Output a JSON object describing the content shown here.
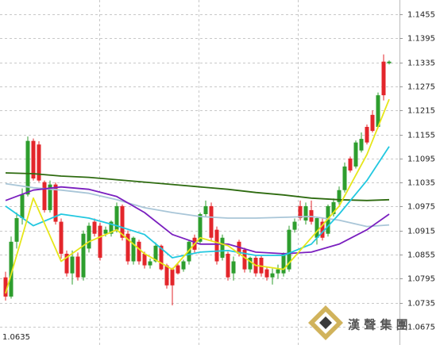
{
  "chart_data": {
    "type": "candlestick",
    "categories": [
      null,
      null,
      null,
      null,
      null,
      null,
      null,
      null,
      null,
      null,
      null,
      null,
      null,
      null,
      null,
      null,
      null,
      null,
      null,
      null,
      null,
      null,
      null,
      null,
      null,
      null,
      null,
      null,
      null,
      null,
      null,
      null,
      null,
      null,
      null,
      null,
      null,
      null,
      null,
      null,
      null,
      null,
      null,
      null,
      null,
      null,
      null,
      null,
      null,
      null,
      null,
      null,
      null,
      null,
      null,
      null,
      null,
      null,
      null,
      null,
      null,
      null,
      null,
      null,
      null,
      null,
      null,
      null,
      null,
      null
    ],
    "open": [
      1.0798,
      1.075,
      1.0887,
      1.0946,
      1.1005,
      1.1139,
      1.113,
      1.1036,
      1.0966,
      1.103,
      1.0937,
      1.0857,
      1.0808,
      1.085,
      1.0798,
      1.087,
      1.0937,
      1.0927,
      1.0907,
      1.0907,
      1.0917,
      1.0976,
      1.0907,
      1.0838,
      1.0887,
      1.0857,
      1.0828,
      1.0838,
      1.0877,
      1.0828,
      1.0818,
      1.0828,
      1.0818,
      1.0838,
      1.0897,
      1.0887,
      1.0956,
      1.0976,
      1.0917,
      1.0847,
      1.0857,
      1.0808,
      1.0887,
      1.0867,
      1.0818,
      1.0847,
      1.0847,
      1.0818,
      1.0798,
      1.0808,
      1.0808,
      1.0818,
      1.0917,
      1.0976,
      1.094,
      1.0966,
      1.0897,
      1.0937,
      1.0907,
      1.0956,
      1.0986,
      1.1016,
      1.1095,
      1.1075,
      1.1115,
      1.1174,
      1.1204,
      1.1174,
      1.1337,
      1.1333
    ],
    "high": [
      1.0812,
      1.09,
      1.096,
      1.102,
      1.115,
      1.1145,
      1.1138,
      1.104,
      1.104,
      1.1035,
      1.0945,
      1.0865,
      1.0865,
      1.086,
      1.0915,
      1.0935,
      1.0945,
      1.0935,
      1.0925,
      1.094,
      1.0985,
      1.098,
      1.0915,
      1.09,
      1.0892,
      1.0862,
      1.0845,
      1.0885,
      1.088,
      1.0832,
      1.0822,
      1.0835,
      1.0842,
      1.089,
      1.0905,
      1.096,
      1.099,
      1.0985,
      1.0925,
      1.0905,
      1.0862,
      1.085,
      1.0892,
      1.0872,
      1.085,
      1.0852,
      1.0852,
      1.0825,
      1.082,
      1.083,
      1.086,
      1.0927,
      1.0945,
      1.099,
      1.0985,
      1.099,
      1.095,
      1.0945,
      1.098,
      1.0995,
      1.1025,
      1.1085,
      1.11,
      1.114,
      1.116,
      1.118,
      1.1215,
      1.126,
      1.1355,
      1.134
    ],
    "low": [
      1.074,
      1.0745,
      1.087,
      1.093,
      1.1,
      1.104,
      1.1036,
      1.096,
      1.096,
      1.093,
      1.0845,
      1.08,
      1.078,
      1.079,
      1.079,
      1.086,
      1.09,
      1.084,
      1.09,
      1.09,
      1.091,
      1.089,
      1.083,
      1.083,
      1.083,
      1.082,
      1.082,
      1.0835,
      1.0815,
      1.077,
      1.0728,
      1.0805,
      1.0812,
      1.083,
      1.086,
      1.088,
      1.095,
      1.089,
      1.083,
      1.084,
      1.079,
      1.079,
      1.085,
      1.081,
      1.081,
      1.08,
      1.08,
      1.079,
      1.078,
      1.0795,
      1.08,
      1.0812,
      1.091,
      1.094,
      1.093,
      1.093,
      1.088,
      1.089,
      1.09,
      1.095,
      1.098,
      1.101,
      1.106,
      1.107,
      1.111,
      1.113,
      1.116,
      1.117,
      1.124,
      1.133
    ],
    "close": [
      1.075,
      1.0887,
      1.0946,
      1.1005,
      1.1139,
      1.1045,
      1.104,
      1.0966,
      1.103,
      1.0937,
      1.0857,
      1.0808,
      1.085,
      1.0798,
      1.0907,
      1.0927,
      1.0907,
      1.0847,
      1.0917,
      1.0937,
      1.0976,
      1.0897,
      1.0838,
      1.0897,
      1.0838,
      1.0828,
      1.0838,
      1.0877,
      1.0818,
      1.0778,
      1.0778,
      1.0808,
      1.0838,
      1.0887,
      1.0867,
      1.0956,
      1.0976,
      1.0897,
      1.0838,
      1.0897,
      1.0798,
      1.0838,
      1.0857,
      1.0818,
      1.0847,
      1.0808,
      1.0808,
      1.0798,
      1.0808,
      1.0818,
      1.0857,
      1.0917,
      1.0937,
      1.0946,
      1.0976,
      1.0937,
      1.0946,
      1.0897,
      1.0976,
      1.0986,
      1.1016,
      1.1075,
      1.1065,
      1.1135,
      1.1144,
      1.1135,
      1.1164,
      1.1253,
      1.1253,
      1.1337
    ],
    "up_color": "#2e9e2e",
    "down_color": "#e3262b",
    "series": [
      {
        "color": "#2e6b10",
        "x": [
          0,
          5,
          10,
          15,
          20,
          25,
          30,
          35,
          40,
          45,
          50,
          55,
          60,
          65,
          69
        ],
        "values": [
          1.1059,
          1.1057,
          1.1051,
          1.1048,
          1.1042,
          1.1036,
          1.103,
          1.1024,
          1.1018,
          1.101,
          1.1004,
          1.0996,
          1.0992,
          1.099,
          1.0992
        ]
      },
      {
        "color": "#a9c6d8",
        "x": [
          0,
          5,
          10,
          15,
          20,
          25,
          30,
          35,
          40,
          45,
          50,
          55,
          60,
          65,
          69
        ],
        "values": [
          1.1032,
          1.1022,
          1.1016,
          1.1008,
          1.0992,
          1.0972,
          1.096,
          1.095,
          1.0946,
          1.0946,
          1.0948,
          1.095,
          1.0941,
          1.0925,
          1.0929
        ]
      },
      {
        "color": "#7a1fbf",
        "x": [
          0,
          5,
          10,
          15,
          20,
          25,
          30,
          35,
          40,
          45,
          50,
          55,
          60,
          65,
          69
        ],
        "values": [
          1.099,
          1.1016,
          1.1024,
          1.1018,
          1.1,
          1.096,
          1.0905,
          1.0881,
          1.0881,
          1.0861,
          1.0857,
          1.0861,
          1.0881,
          1.0917,
          1.0956
        ]
      },
      {
        "color": "#22c8e0",
        "x": [
          0,
          5,
          10,
          15,
          20,
          25,
          30,
          35,
          40,
          45,
          50,
          55,
          60,
          65,
          69
        ],
        "values": [
          1.0976,
          1.0927,
          1.0956,
          1.0946,
          1.0927,
          1.0905,
          1.0847,
          1.0861,
          1.0865,
          1.0853,
          1.0853,
          1.0881,
          1.0956,
          1.104,
          1.1125
        ]
      },
      {
        "color": "#e6e61a",
        "x": [
          0,
          5,
          10,
          15,
          20,
          25,
          30,
          35,
          40,
          45,
          50,
          55,
          60,
          65,
          69
        ],
        "values": [
          1.0758,
          1.0996,
          1.0838,
          1.0887,
          1.0917,
          1.0857,
          1.0818,
          1.0897,
          1.0877,
          1.0828,
          1.0818,
          1.0897,
          1.0976,
          1.1105,
          1.1243
        ]
      }
    ],
    "ylim": [
      1.0629,
      1.1491
    ],
    "yticks": [
      1.1455,
      1.1395,
      1.1335,
      1.1275,
      1.1215,
      1.1155,
      1.1095,
      1.1035,
      1.0975,
      1.0915,
      1.0855,
      1.0795,
      1.0735,
      1.0675
    ],
    "grid": true,
    "annotations": [
      "1.0635"
    ]
  },
  "watermark": "漢 聲 集 團"
}
